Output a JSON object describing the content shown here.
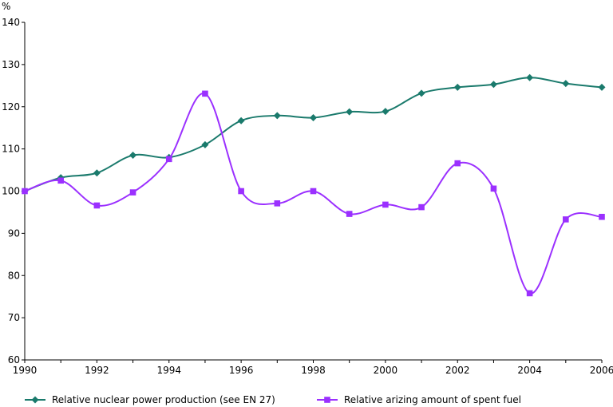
{
  "chart_data": {
    "type": "line",
    "title": "",
    "xlabel": "",
    "ylabel": "%",
    "xlim": [
      1990,
      2006
    ],
    "ylim": [
      60,
      140
    ],
    "x_ticks": [
      1990,
      1992,
      1994,
      1996,
      1998,
      2000,
      2002,
      2004,
      2006
    ],
    "y_ticks": [
      60,
      70,
      80,
      90,
      100,
      110,
      120,
      130,
      140
    ],
    "grid": false,
    "legend_position": "bottom",
    "x": [
      1990,
      1991,
      1992,
      1993,
      1994,
      1995,
      1996,
      1997,
      1998,
      1999,
      2000,
      2001,
      2002,
      2003,
      2004,
      2005,
      2006
    ],
    "series": [
      {
        "name": "Relative nuclear power production (see EN 27)",
        "color": "#1a7a6c",
        "marker": "diamond",
        "values": [
          100,
          103.2,
          104.3,
          108.5,
          108.0,
          111.0,
          116.7,
          117.9,
          117.4,
          118.8,
          118.9,
          123.2,
          124.6,
          125.3,
          126.9,
          125.5,
          124.6
        ]
      },
      {
        "name": "Relative arizing amount of spent fuel",
        "color": "#9b30ff",
        "marker": "square",
        "values": [
          100,
          102.5,
          96.6,
          99.7,
          107.6,
          123.1,
          100.0,
          97.1,
          100.0,
          94.6,
          96.8,
          96.2,
          106.6,
          100.6,
          75.8,
          93.3,
          93.9
        ]
      }
    ]
  }
}
